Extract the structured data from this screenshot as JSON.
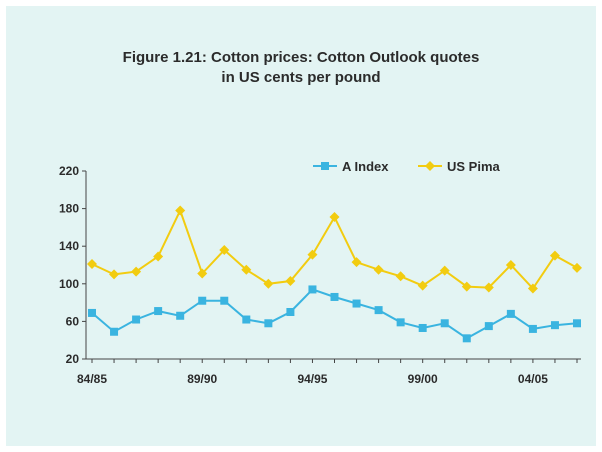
{
  "chart_data": {
    "type": "line",
    "title_line1": "Figure 1.21: Cotton prices: Cotton Outlook quotes",
    "title_line2": "in US cents per pound",
    "xlabel": "",
    "ylabel": "",
    "ylim": [
      20,
      220
    ],
    "yticks": [
      20,
      60,
      100,
      140,
      180,
      220
    ],
    "x_tick_labels": [
      "84/85",
      "89/90",
      "94/95",
      "99/00",
      "04/05"
    ],
    "x_tick_indices": [
      0,
      5,
      10,
      15,
      20
    ],
    "legend_position": "top-right",
    "grid": false,
    "series": [
      {
        "name": "A Index",
        "color": "#3ab4e0",
        "marker": "square",
        "values": [
          69,
          49,
          62,
          71,
          66,
          82,
          82,
          62,
          58,
          70,
          94,
          86,
          79,
          72,
          59,
          53,
          58,
          42,
          55,
          68,
          52,
          56,
          58
        ]
      },
      {
        "name": "US Pima",
        "color": "#f2cc10",
        "marker": "diamond",
        "values": [
          121,
          110,
          113,
          129,
          178,
          111,
          136,
          115,
          100,
          103,
          131,
          171,
          123,
          115,
          108,
          98,
          114,
          97,
          96,
          120,
          95,
          130,
          117
        ]
      }
    ]
  }
}
